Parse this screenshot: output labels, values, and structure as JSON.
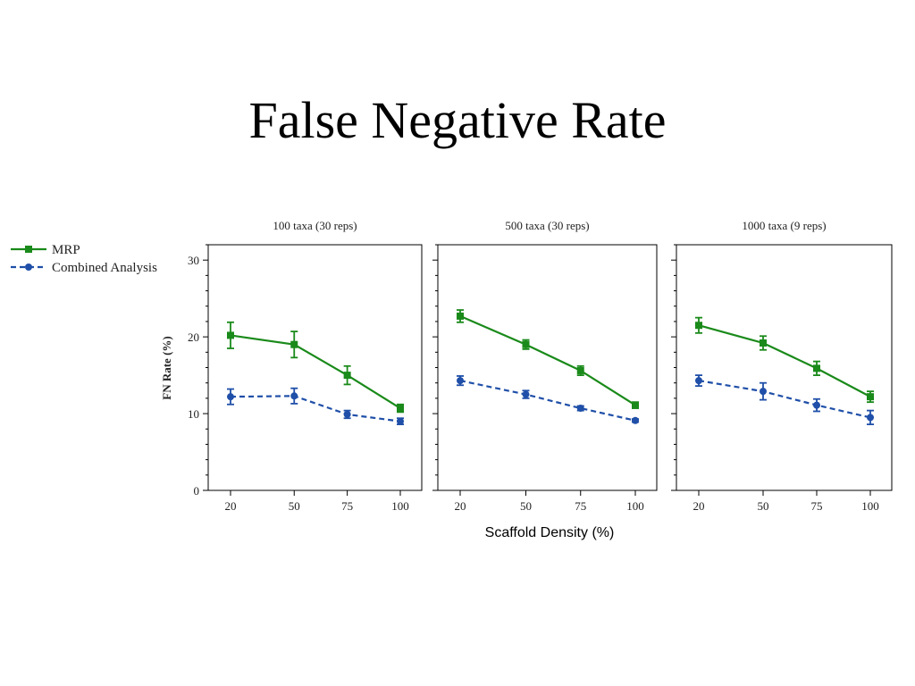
{
  "title": "False Negative Rate",
  "chart_data": {
    "type": "line",
    "xlabel": "Scaffold Density (%)",
    "ylabel": "FN Rate (%)",
    "ylim": [
      0,
      32
    ],
    "yticks": [
      0,
      10,
      20,
      30
    ],
    "x": [
      20,
      50,
      75,
      100
    ],
    "legend": {
      "position": "left",
      "series": [
        {
          "name": "MRP",
          "color": "#1a8a1a",
          "dash": "solid",
          "marker": "square"
        },
        {
          "name": "Combined Analysis",
          "color": "#1f4fa8",
          "dash": "dashed",
          "marker": "circle"
        }
      ]
    },
    "panels": [
      {
        "title": "100 taxa (30 reps)",
        "series": [
          {
            "name": "MRP",
            "values": [
              20.2,
              19.0,
              15.0,
              10.7
            ],
            "err": [
              1.7,
              1.7,
              1.2,
              0.5
            ]
          },
          {
            "name": "Combined Analysis",
            "values": [
              12.2,
              12.3,
              9.9,
              9.0
            ],
            "err": [
              1.0,
              1.0,
              0.5,
              0.4
            ]
          }
        ]
      },
      {
        "title": "500 taxa (30 reps)",
        "series": [
          {
            "name": "MRP",
            "values": [
              22.7,
              19.0,
              15.6,
              11.1
            ],
            "err": [
              0.8,
              0.6,
              0.6,
              0.4
            ]
          },
          {
            "name": "Combined Analysis",
            "values": [
              14.3,
              12.5,
              10.7,
              9.1
            ],
            "err": [
              0.6,
              0.5,
              0.3,
              0.2
            ]
          }
        ]
      },
      {
        "title": "1000 taxa (9 reps)",
        "series": [
          {
            "name": "MRP",
            "values": [
              21.5,
              19.2,
              15.9,
              12.2
            ],
            "err": [
              1.0,
              0.9,
              0.9,
              0.7
            ]
          },
          {
            "name": "Combined Analysis",
            "values": [
              14.3,
              12.9,
              11.1,
              9.5
            ],
            "err": [
              0.7,
              1.1,
              0.8,
              0.9
            ]
          }
        ]
      }
    ]
  }
}
